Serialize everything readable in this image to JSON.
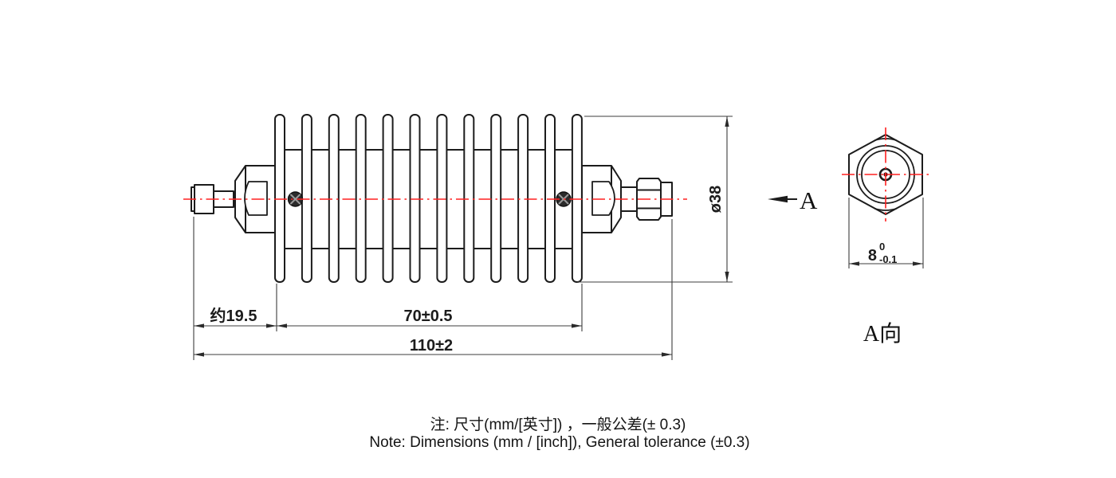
{
  "side_view": {
    "fin_count": 12,
    "dims": {
      "connector_length": "约19.5",
      "body_length": "70±0.5",
      "overall_length": "110±2",
      "diameter": "ø38"
    }
  },
  "end_view": {
    "view_label": "A向",
    "hex_dim": {
      "nominal": "8",
      "tol_upper": "0",
      "tol_lower": "-0.1"
    }
  },
  "view_direction": {
    "label": "A"
  },
  "notes": {
    "zh": "注: 尺寸(mm/[英寸]) ，一般公差(± 0.3)",
    "en": "Note: Dimensions (mm / [inch]), General tolerance (±0.3)"
  },
  "colors": {
    "centerline_red": "#ff2020",
    "line_black": "#1c1c1c"
  }
}
